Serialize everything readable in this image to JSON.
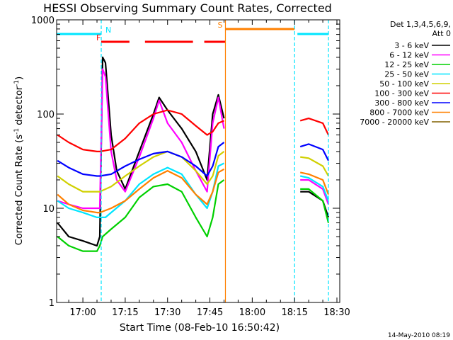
{
  "chart_data": {
    "type": "line",
    "title": "HESSI Observing Summary Count Rates, Corrected",
    "xlabel": "Start Time (08-Feb-10 16:50:42)",
    "ylabel_main": "Corrected Count Rate (s",
    "ylabel_sup1": "-1",
    "ylabel_mid": " detector",
    "ylabel_sup2": "-1",
    "ylabel_end": ")",
    "y_scale": "log",
    "ylim": [
      1,
      1000
    ],
    "xlim": [
      "16:50:42",
      "18:31:00"
    ],
    "x_ticks": [
      "17:00",
      "17:15",
      "17:30",
      "17:45",
      "18:00",
      "18:15",
      "18:30"
    ],
    "y_ticks": [
      "1",
      "10",
      "100",
      "1000"
    ],
    "timestamp": "14-May-2010 08:19",
    "legend_title": [
      "Det 1,3,4,5,6,9,",
      "Att 0"
    ],
    "legend_placement": "right",
    "flags": [
      {
        "label": "N",
        "color": "#00e5ff",
        "intervals": [
          [
            "16:50:42",
            "17:06:30"
          ],
          [
            "18:16:00",
            "18:27:00"
          ]
        ]
      },
      {
        "label": "F",
        "color": "#ff0000",
        "intervals": [
          [
            "17:06:30",
            "17:16:30"
          ],
          [
            "17:22:00",
            "17:39:00"
          ],
          [
            "17:43:00",
            "17:50:30"
          ]
        ]
      },
      {
        "label": "S",
        "color": "#ff8000",
        "intervals": [
          [
            "17:50:30",
            "18:15:00"
          ]
        ]
      }
    ],
    "event_lines": [
      {
        "time": "17:06:30",
        "color": "#00e5ff",
        "style": "dashed"
      },
      {
        "time": "17:50:30",
        "color": "#ff8000",
        "style": "solid"
      },
      {
        "time": "18:15:00",
        "color": "#00e5ff",
        "style": "dashed"
      },
      {
        "time": "18:27:00",
        "color": "#00e5ff",
        "style": "dashed"
      }
    ],
    "data_gap": [
      "17:51:00",
      "18:16:00"
    ],
    "series": [
      {
        "name": "3 - 6 keV",
        "color": "#000000",
        "x": [
          "16:51",
          "16:55",
          "17:00",
          "17:05",
          "17:06",
          "17:07",
          "17:08",
          "17:10",
          "17:12",
          "17:15",
          "17:20",
          "17:25",
          "17:27",
          "17:30",
          "17:35",
          "17:40",
          "17:44",
          "17:46",
          "17:48",
          "17:50",
          "18:17",
          "18:20",
          "18:25",
          "18:27"
        ],
        "y": [
          7,
          5,
          4.5,
          4,
          5,
          400,
          350,
          60,
          25,
          16,
          40,
          100,
          150,
          110,
          70,
          40,
          20,
          100,
          160,
          90,
          15,
          15,
          12,
          8
        ]
      },
      {
        "name": "6 - 12 keV",
        "color": "#ff00ff",
        "x": [
          "16:51",
          "16:55",
          "17:00",
          "17:05",
          "17:06",
          "17:07",
          "17:08",
          "17:10",
          "17:12",
          "17:15",
          "17:20",
          "17:25",
          "17:27",
          "17:30",
          "17:35",
          "17:40",
          "17:44",
          "17:46",
          "17:48",
          "17:50",
          "18:17",
          "18:20",
          "18:25",
          "18:27"
        ],
        "y": [
          12,
          11,
          10,
          10,
          10,
          300,
          250,
          40,
          20,
          15,
          35,
          90,
          140,
          80,
          50,
          25,
          15,
          80,
          150,
          70,
          20,
          20,
          16,
          11
        ]
      },
      {
        "name": "12 - 25 keV",
        "color": "#00d000",
        "x": [
          "16:51",
          "16:55",
          "17:00",
          "17:05",
          "17:06",
          "17:07",
          "17:10",
          "17:15",
          "17:20",
          "17:25",
          "17:30",
          "17:35",
          "17:40",
          "17:44",
          "17:46",
          "17:48",
          "17:50",
          "18:17",
          "18:20",
          "18:25",
          "18:27"
        ],
        "y": [
          5,
          4,
          3.5,
          3.5,
          4,
          5,
          6,
          8,
          13,
          17,
          18,
          15,
          8,
          5,
          8,
          18,
          20,
          16,
          16,
          12,
          7
        ]
      },
      {
        "name": "25 - 50 keV",
        "color": "#00e5ff",
        "x": [
          "16:51",
          "16:55",
          "17:00",
          "17:05",
          "17:06",
          "17:08",
          "17:10",
          "17:15",
          "17:20",
          "17:25",
          "17:30",
          "17:35",
          "17:40",
          "17:44",
          "17:46",
          "17:48",
          "17:50",
          "18:17",
          "18:20",
          "18:25",
          "18:27"
        ],
        "y": [
          12,
          10,
          9,
          8,
          8,
          8,
          9,
          12,
          18,
          23,
          27,
          23,
          14,
          10,
          15,
          28,
          30,
          22,
          21,
          17,
          12
        ]
      },
      {
        "name": "50 - 100 keV",
        "color": "#d0d000",
        "x": [
          "16:51",
          "16:55",
          "17:00",
          "17:05",
          "17:06",
          "17:10",
          "17:15",
          "17:20",
          "17:25",
          "17:30",
          "17:35",
          "17:40",
          "17:44",
          "17:46",
          "17:48",
          "17:50",
          "18:17",
          "18:20",
          "18:25",
          "18:27"
        ],
        "y": [
          22,
          18,
          15,
          15,
          15,
          17,
          22,
          28,
          35,
          40,
          35,
          25,
          18,
          22,
          36,
          40,
          35,
          34,
          28,
          22
        ]
      },
      {
        "name": "100 - 300 keV",
        "color": "#ff0000",
        "x": [
          "16:51",
          "16:55",
          "17:00",
          "17:05",
          "17:06",
          "17:10",
          "17:15",
          "17:20",
          "17:25",
          "17:30",
          "17:35",
          "17:40",
          "17:44",
          "17:46",
          "17:48",
          "17:50",
          "18:17",
          "18:20",
          "18:25",
          "18:27"
        ],
        "y": [
          60,
          50,
          42,
          40,
          40,
          42,
          55,
          80,
          100,
          110,
          100,
          75,
          60,
          65,
          80,
          85,
          85,
          90,
          80,
          60
        ]
      },
      {
        "name": "300 - 800 keV",
        "color": "#0000ff",
        "x": [
          "16:51",
          "16:55",
          "17:00",
          "17:05",
          "17:06",
          "17:10",
          "17:15",
          "17:20",
          "17:25",
          "17:30",
          "17:35",
          "17:40",
          "17:44",
          "17:46",
          "17:48",
          "17:50",
          "18:17",
          "18:20",
          "18:25",
          "18:27"
        ],
        "y": [
          32,
          27,
          23,
          22,
          22,
          23,
          28,
          33,
          38,
          40,
          35,
          28,
          22,
          28,
          45,
          50,
          45,
          48,
          42,
          32
        ]
      },
      {
        "name": "800 - 7000 keV",
        "color": "#ff8000",
        "x": [
          "16:51",
          "16:55",
          "17:00",
          "17:05",
          "17:06",
          "17:10",
          "17:15",
          "17:20",
          "17:25",
          "17:30",
          "17:35",
          "17:40",
          "17:44",
          "17:46",
          "17:48",
          "17:50",
          "18:17",
          "18:20",
          "18:25",
          "18:27"
        ],
        "y": [
          14,
          11,
          9.5,
          9,
          9,
          10,
          12,
          16,
          21,
          25,
          21,
          14,
          11,
          15,
          24,
          26,
          24,
          23,
          20,
          14
        ]
      },
      {
        "name": "7000 - 20000 keV",
        "color": "#806000",
        "x": [],
        "y": []
      }
    ]
  }
}
